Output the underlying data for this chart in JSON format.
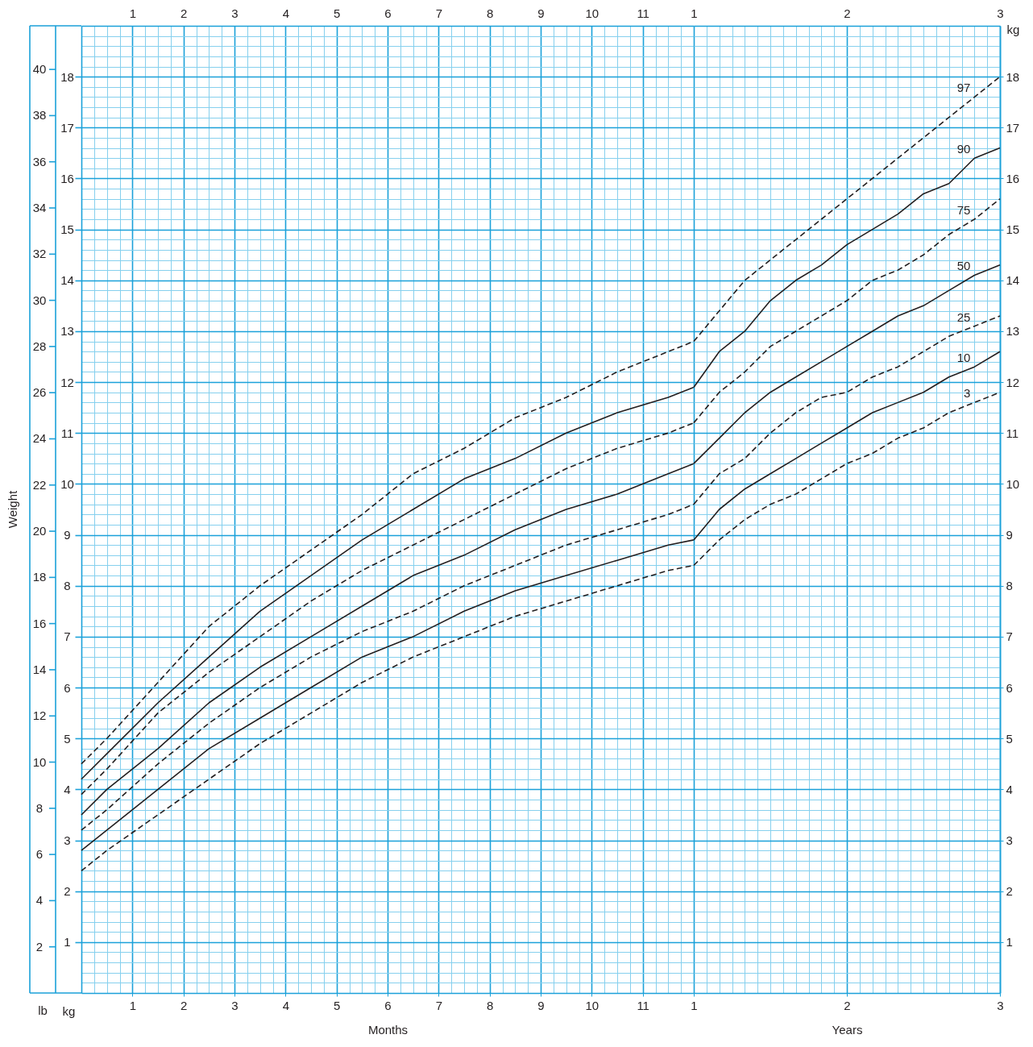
{
  "chart_data": [
    {
      "type": "line",
      "xlabel": "Months",
      "ylabel": "kg",
      "y2label": "lb",
      "annotations": [
        "Weight"
      ],
      "x": [
        0,
        0.5,
        1.5,
        2.5,
        3.5,
        4.5,
        5.5,
        6.5,
        7.5,
        8.5,
        9.5,
        10.5,
        11.5,
        12
      ],
      "series": [
        {
          "color": "#231f20",
          "line_style": "dashed",
          "values": [
            4.5,
            5.0,
            6.1,
            7.2,
            8.0,
            8.7,
            9.4,
            10.2,
            10.7,
            11.3,
            11.7,
            12.2,
            12.6,
            12.8
          ]
        },
        {
          "color": "#231f20",
          "line_style": "solid",
          "values": [
            4.2,
            4.7,
            5.7,
            6.6,
            7.5,
            8.2,
            8.9,
            9.5,
            10.1,
            10.5,
            11.0,
            11.4,
            11.7,
            11.9
          ]
        },
        {
          "color": "#231f20",
          "line_style": "dashed",
          "values": [
            3.9,
            4.4,
            5.5,
            6.3,
            7.0,
            7.7,
            8.3,
            8.8,
            9.3,
            9.8,
            10.3,
            10.7,
            11.0,
            11.2
          ]
        },
        {
          "color": "#231f20",
          "line_style": "solid",
          "values": [
            3.5,
            4.0,
            4.8,
            5.7,
            6.4,
            7.0,
            7.6,
            8.2,
            8.6,
            9.1,
            9.5,
            9.8,
            10.2,
            10.4
          ]
        },
        {
          "color": "#231f20",
          "line_style": "dashed",
          "values": [
            3.2,
            3.6,
            4.5,
            5.3,
            6.0,
            6.6,
            7.1,
            7.5,
            8.0,
            8.4,
            8.8,
            9.1,
            9.4,
            9.6
          ]
        },
        {
          "color": "#231f20",
          "line_style": "solid",
          "values": [
            2.8,
            3.2,
            4.0,
            4.8,
            5.4,
            6.0,
            6.6,
            7.0,
            7.5,
            7.9,
            8.2,
            8.5,
            8.8,
            8.9
          ]
        },
        {
          "color": "#231f20",
          "line_style": "dashed",
          "values": [
            2.4,
            2.8,
            3.5,
            4.2,
            4.9,
            5.5,
            6.1,
            6.6,
            7.0,
            7.4,
            7.7,
            8.0,
            8.3,
            8.4
          ]
        }
      ],
      "xlim": [
        0,
        12
      ],
      "xticks": [
        1,
        2,
        3,
        4,
        5,
        6,
        7,
        8,
        9,
        10,
        11
      ],
      "x2lim": [
        0,
        12
      ],
      "x2ticks": [
        1,
        2,
        3,
        4,
        5,
        6,
        7,
        8,
        9,
        10,
        11
      ],
      "ylim": [
        0,
        19
      ],
      "yticks": [
        1,
        2,
        3,
        4,
        5,
        6,
        7,
        8,
        9,
        10,
        11,
        12,
        13,
        14,
        15,
        16,
        17,
        18
      ],
      "y2lim": [
        0,
        41.89
      ],
      "y2ticks": [
        2,
        4,
        6,
        8,
        10,
        12,
        14,
        16,
        18,
        20,
        22,
        24,
        26,
        28,
        30,
        32,
        34,
        36,
        38,
        40
      ],
      "grid": true,
      "legend": false
    },
    {
      "type": "line",
      "xlabel": "Years",
      "ylabel": "kg",
      "x": [
        1,
        1.1667,
        1.3333,
        1.5,
        1.6667,
        1.8333,
        2,
        2.1667,
        2.3333,
        2.5,
        2.6667,
        2.8333,
        3
      ],
      "series": [
        {
          "name": "97",
          "color": "#231f20",
          "line_style": "dashed",
          "values": [
            12.8,
            13.4,
            14.0,
            14.4,
            14.8,
            15.2,
            15.6,
            16.0,
            16.4,
            16.8,
            17.2,
            17.6,
            18.0
          ]
        },
        {
          "name": "90",
          "color": "#231f20",
          "line_style": "solid",
          "values": [
            11.9,
            12.6,
            13.0,
            13.6,
            14.0,
            14.3,
            14.7,
            15.0,
            15.3,
            15.7,
            15.9,
            16.4,
            16.6
          ]
        },
        {
          "name": "75",
          "color": "#231f20",
          "line_style": "dashed",
          "values": [
            11.2,
            11.8,
            12.2,
            12.7,
            13.0,
            13.3,
            13.6,
            14.0,
            14.2,
            14.5,
            14.9,
            15.2,
            15.6
          ]
        },
        {
          "name": "50",
          "color": "#231f20",
          "line_style": "solid",
          "values": [
            10.4,
            10.9,
            11.4,
            11.8,
            12.1,
            12.4,
            12.7,
            13.0,
            13.3,
            13.5,
            13.8,
            14.1,
            14.3
          ]
        },
        {
          "name": "25",
          "color": "#231f20",
          "line_style": "dashed",
          "values": [
            9.6,
            10.2,
            10.5,
            11.0,
            11.4,
            11.7,
            11.8,
            12.1,
            12.3,
            12.6,
            12.9,
            13.1,
            13.3
          ]
        },
        {
          "name": "10",
          "color": "#231f20",
          "line_style": "solid",
          "values": [
            8.9,
            9.5,
            9.9,
            10.2,
            10.5,
            10.8,
            11.1,
            11.4,
            11.6,
            11.8,
            12.1,
            12.3,
            12.6
          ]
        },
        {
          "name": "3",
          "color": "#231f20",
          "line_style": "dashed",
          "values": [
            8.4,
            8.9,
            9.3,
            9.6,
            9.8,
            10.1,
            10.4,
            10.6,
            10.9,
            11.1,
            11.4,
            11.6,
            11.8
          ]
        }
      ],
      "xlim": [
        1,
        3
      ],
      "xticks": [
        1,
        {
          "value": 1.0833,
          "label": null
        },
        {
          "value": 1.1667,
          "label": null
        },
        {
          "value": 1.25,
          "label": null
        },
        {
          "value": 1.3333,
          "label": null
        },
        {
          "value": 1.4167,
          "label": null
        },
        {
          "value": 1.5,
          "label": null
        },
        {
          "value": 1.5833,
          "label": null
        },
        {
          "value": 1.6667,
          "label": null
        },
        {
          "value": 1.75,
          "label": null
        },
        {
          "value": 1.8333,
          "label": null
        },
        {
          "value": 1.9167,
          "label": null
        },
        2,
        {
          "value": 2.0833,
          "label": null
        },
        {
          "value": 2.1667,
          "label": null
        },
        {
          "value": 2.25,
          "label": null
        },
        {
          "value": 2.3333,
          "label": null
        },
        {
          "value": 2.4167,
          "label": null
        },
        {
          "value": 2.5,
          "label": null
        },
        {
          "value": 2.5833,
          "label": null
        },
        {
          "value": 2.6667,
          "label": null
        },
        {
          "value": 2.75,
          "label": null
        },
        {
          "value": 2.8333,
          "label": null
        },
        {
          "value": 2.9167,
          "label": null
        },
        3
      ],
      "x2lim": [
        1,
        3
      ],
      "x2ticks": [
        1,
        2,
        3
      ],
      "ylim": [
        0,
        19
      ],
      "yticks": [
        1,
        2,
        3,
        4,
        5,
        6,
        7,
        8,
        9,
        10,
        11,
        12,
        13,
        14,
        15,
        16,
        17,
        18
      ],
      "grid": true,
      "legend": false
    }
  ]
}
